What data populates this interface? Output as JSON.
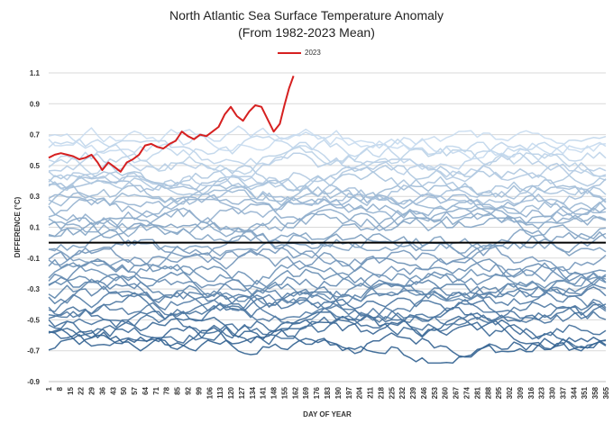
{
  "chart_data": {
    "type": "line",
    "title": "North Atlantic Sea Surface Temperature Anomaly",
    "subtitle": "(From 1982-2023 Mean)",
    "xlabel": "DAY OF YEAR",
    "ylabel": "DIFFERENCE (°C)",
    "ylim": [
      -0.9,
      1.1
    ],
    "xlim": [
      1,
      365
    ],
    "y_ticks": [
      "-0.9",
      "-0.7",
      "-0.5",
      "-0.3",
      "-0.1",
      "0.1",
      "0.3",
      "0.5",
      "0.7",
      "0.9",
      "1.1"
    ],
    "x_ticks": [
      "1",
      "8",
      "15",
      "22",
      "29",
      "36",
      "43",
      "50",
      "57",
      "64",
      "71",
      "78",
      "85",
      "92",
      "99",
      "106",
      "113",
      "120",
      "127",
      "134",
      "141",
      "148",
      "155",
      "162",
      "169",
      "176",
      "183",
      "190",
      "197",
      "204",
      "211",
      "218",
      "225",
      "232",
      "239",
      "246",
      "253",
      "260",
      "267",
      "274",
      "281",
      "288",
      "295",
      "302",
      "309",
      "316",
      "323",
      "330",
      "337",
      "344",
      "351",
      "358",
      "365"
    ],
    "legend": {
      "position": "top",
      "entries": [
        "2023"
      ]
    },
    "zero_line": 0,
    "highlight_series": {
      "name": "2023",
      "color": "#d62020",
      "x": [
        1,
        5,
        9,
        13,
        17,
        21,
        25,
        29,
        33,
        36,
        40,
        44,
        48,
        52,
        56,
        60,
        64,
        68,
        72,
        76,
        80,
        84,
        88,
        92,
        96,
        100,
        104,
        108,
        112,
        116,
        120,
        124,
        128,
        132,
        136,
        140,
        144,
        148,
        152,
        155,
        158,
        161
      ],
      "y": [
        0.55,
        0.57,
        0.58,
        0.57,
        0.56,
        0.54,
        0.55,
        0.57,
        0.52,
        0.47,
        0.52,
        0.49,
        0.46,
        0.52,
        0.54,
        0.57,
        0.63,
        0.64,
        0.62,
        0.61,
        0.64,
        0.66,
        0.72,
        0.69,
        0.67,
        0.7,
        0.69,
        0.72,
        0.75,
        0.83,
        0.88,
        0.82,
        0.79,
        0.85,
        0.89,
        0.88,
        0.8,
        0.72,
        0.77,
        0.89,
        1.0,
        1.08
      ]
    },
    "background_series": {
      "count": 41,
      "years": "1982-2022",
      "color_range": [
        "#2f5f8f",
        "#c8dcf0"
      ],
      "x_step": 4,
      "y_ranges": [
        [
          -0.78,
          -0.6
        ],
        [
          -0.74,
          -0.55
        ],
        [
          -0.72,
          -0.5
        ],
        [
          -0.68,
          -0.45
        ],
        [
          -0.65,
          -0.42
        ],
        [
          -0.62,
          -0.4
        ],
        [
          -0.58,
          -0.36
        ],
        [
          -0.55,
          -0.32
        ],
        [
          -0.52,
          -0.3
        ],
        [
          -0.5,
          -0.27
        ],
        [
          -0.47,
          -0.24
        ],
        [
          -0.44,
          -0.21
        ],
        [
          -0.41,
          -0.18
        ],
        [
          -0.38,
          -0.15
        ],
        [
          -0.35,
          -0.12
        ],
        [
          -0.32,
          -0.1
        ],
        [
          -0.28,
          -0.06
        ],
        [
          -0.25,
          -0.03
        ],
        [
          -0.2,
          0.02
        ],
        [
          -0.15,
          0.06
        ],
        [
          -0.1,
          0.1
        ],
        [
          -0.05,
          0.13
        ],
        [
          0.0,
          0.16
        ],
        [
          0.04,
          0.19
        ],
        [
          0.07,
          0.22
        ],
        [
          0.1,
          0.25
        ],
        [
          0.13,
          0.28
        ],
        [
          0.16,
          0.31
        ],
        [
          0.19,
          0.34
        ],
        [
          0.22,
          0.37
        ],
        [
          0.25,
          0.4
        ],
        [
          0.28,
          0.43
        ],
        [
          0.31,
          0.46
        ],
        [
          0.34,
          0.5
        ],
        [
          0.37,
          0.54
        ],
        [
          0.4,
          0.58
        ],
        [
          0.43,
          0.62
        ],
        [
          0.46,
          0.66
        ],
        [
          0.5,
          0.71
        ],
        [
          0.53,
          0.76
        ],
        [
          0.55,
          0.8
        ]
      ]
    }
  }
}
